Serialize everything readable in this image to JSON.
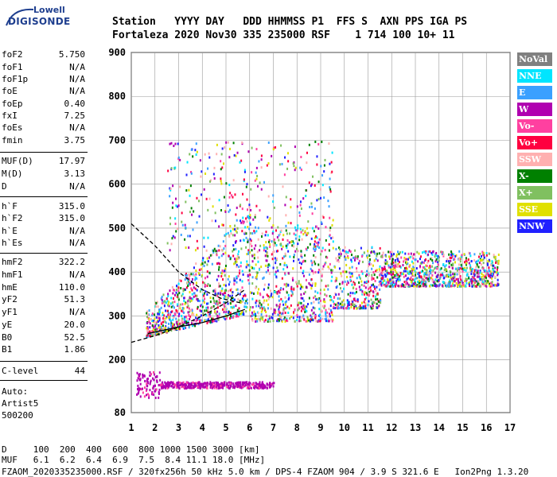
{
  "logo": {
    "brand": "Lowell",
    "name": "DIGISONDE"
  },
  "header": {
    "labels": "Station   YYYY DAY   DDD HHMMSS P1  FFS S  AXN PPS IGA PS",
    "values": "Fortaleza 2020 Nov30 335 235000 RSF    1 714 100 10+ 11"
  },
  "params": [
    {
      "name": "foF2",
      "value": "5.750"
    },
    {
      "name": "foF1",
      "value": "N/A"
    },
    {
      "name": "foF1p",
      "value": "N/A"
    },
    {
      "name": "foE",
      "value": "N/A"
    },
    {
      "name": "foEp",
      "value": "0.40"
    },
    {
      "name": "fxI",
      "value": "7.25"
    },
    {
      "name": "foEs",
      "value": "N/A"
    },
    {
      "name": "fmin",
      "value": "3.75"
    },
    {
      "name": "MUF(D)",
      "value": "17.97"
    },
    {
      "name": "M(D)",
      "value": "3.13"
    },
    {
      "name": "D",
      "value": "N/A"
    },
    {
      "name": "h`F",
      "value": "315.0"
    },
    {
      "name": "h`F2",
      "value": "315.0"
    },
    {
      "name": "h`E",
      "value": "N/A"
    },
    {
      "name": "h`Es",
      "value": "N/A"
    },
    {
      "name": "hmF2",
      "value": "322.2"
    },
    {
      "name": "hmF1",
      "value": "N/A"
    },
    {
      "name": "hmE",
      "value": "110.0"
    },
    {
      "name": "yF2",
      "value": "51.3"
    },
    {
      "name": "yF1",
      "value": "N/A"
    },
    {
      "name": "yE",
      "value": "20.0"
    },
    {
      "name": "B0",
      "value": "52.5"
    },
    {
      "name": "B1",
      "value": "1.86"
    },
    {
      "name": "C-level",
      "value": "44"
    }
  ],
  "auto": {
    "line1": "Auto:",
    "line2": "Artist5",
    "line3": "500200"
  },
  "legend": [
    {
      "label": "NoVal",
      "color": "#808080"
    },
    {
      "label": "NNE",
      "color": "#00e5ff"
    },
    {
      "label": "E",
      "color": "#3aa0ff"
    },
    {
      "label": "W",
      "color": "#b000b0"
    },
    {
      "label": "Vo-",
      "color": "#ff40a0"
    },
    {
      "label": "Vo+",
      "color": "#ff0040"
    },
    {
      "label": "SSW",
      "color": "#ffb0b0"
    },
    {
      "label": "X-",
      "color": "#008000"
    },
    {
      "label": "X+",
      "color": "#80c060"
    },
    {
      "label": "SSE",
      "color": "#e0e000"
    },
    {
      "label": "NNW",
      "color": "#2020ff"
    }
  ],
  "footer": {
    "d_row": "D     100  200  400  600  800 1000 1500 3000 [km]",
    "muf_row": "MUF   6.1  6.2  6.4  6.9  7.5  8.4 11.1 18.0 [MHz]",
    "file_row": "FZAOM_2020335235000.RSF / 320fx256h 50 kHz 5.0 km / DPS-4 FZAOM 904 / 3.9 S 321.6 E   Ion2Png 1.3.20"
  },
  "chart_data": {
    "type": "scatter",
    "title": "",
    "xlabel": "",
    "ylabel": "",
    "xlim": [
      1,
      17
    ],
    "ylim": [
      80,
      900
    ],
    "x_ticks": [
      "1",
      "2",
      "3",
      "4",
      "5",
      "6",
      "7",
      "8",
      "9",
      "10",
      "11",
      "12",
      "13",
      "14",
      "15",
      "16",
      "17"
    ],
    "y_ticks": [
      "80",
      "200",
      "300",
      "400",
      "500",
      "600",
      "700",
      "800",
      "900"
    ],
    "grid": true,
    "traces": {
      "f2_layer": {
        "f_start": 1.6,
        "f_end": 16.5,
        "h_base": 300,
        "h_top": 560
      },
      "e_layer": {
        "f_start": 1.0,
        "f_end": 7.0,
        "h": 145
      }
    },
    "profile_solid": [
      [
        1.7,
        260
      ],
      [
        3,
        275
      ],
      [
        4,
        285
      ],
      [
        5,
        300
      ],
      [
        5.8,
        315
      ]
    ],
    "profile_dashed_upper": [
      [
        1.0,
        510
      ],
      [
        2,
        460
      ],
      [
        3,
        400
      ],
      [
        4,
        360
      ],
      [
        4.8,
        340
      ],
      [
        5.6,
        330
      ]
    ],
    "profile_dashed_lower": [
      [
        1.0,
        240
      ],
      [
        2,
        255
      ],
      [
        3,
        275
      ],
      [
        4,
        300
      ],
      [
        5,
        330
      ],
      [
        5.8,
        360
      ]
    ]
  }
}
